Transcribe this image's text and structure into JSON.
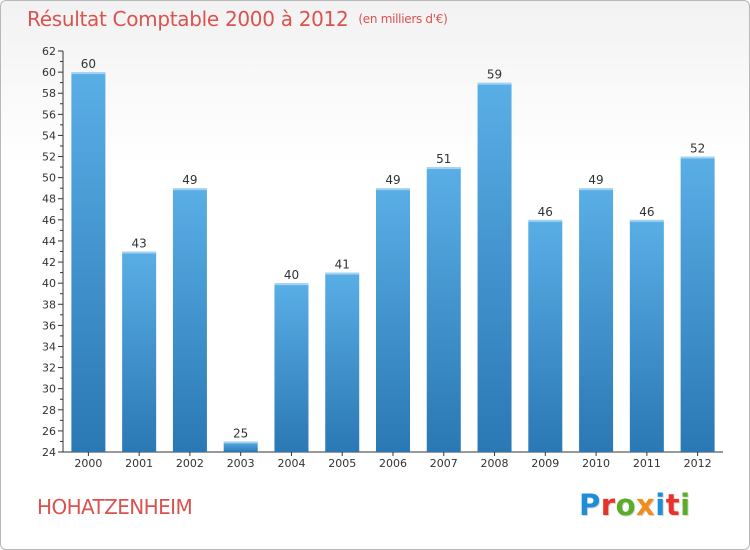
{
  "title": "Résultat Comptable 2000 à 2012",
  "subtitle": "(en milliers d'€)",
  "commune": "HOHATZENHEIM",
  "logo": {
    "text": "Proxiti",
    "letter_colors": [
      "#1f8ed6",
      "#e8332a",
      "#5aac2a",
      "#f08b1d",
      "#1f8ed6",
      "#e8332a",
      "#5aac2a"
    ]
  },
  "colors": {
    "title": "#d9534f",
    "bar_light": "#5aaee6",
    "bar_dark": "#2a78b4",
    "axis": "#333333",
    "grid": "#cccccc"
  },
  "chart_data": {
    "type": "bar",
    "title": "Résultat Comptable 2000 à 2012",
    "subtitle": "(en milliers d'€)",
    "categories": [
      "2000",
      "2001",
      "2002",
      "2003",
      "2004",
      "2005",
      "2006",
      "2007",
      "2008",
      "2009",
      "2010",
      "2011",
      "2012"
    ],
    "values": [
      60,
      43,
      49,
      25,
      40,
      41,
      49,
      51,
      59,
      46,
      49,
      46,
      52
    ],
    "ylim": [
      24,
      62
    ],
    "yticks": [
      24,
      26,
      28,
      30,
      32,
      34,
      36,
      38,
      40,
      42,
      44,
      46,
      48,
      50,
      52,
      54,
      56,
      58,
      60,
      62
    ],
    "grid": false,
    "data_labels": true
  }
}
